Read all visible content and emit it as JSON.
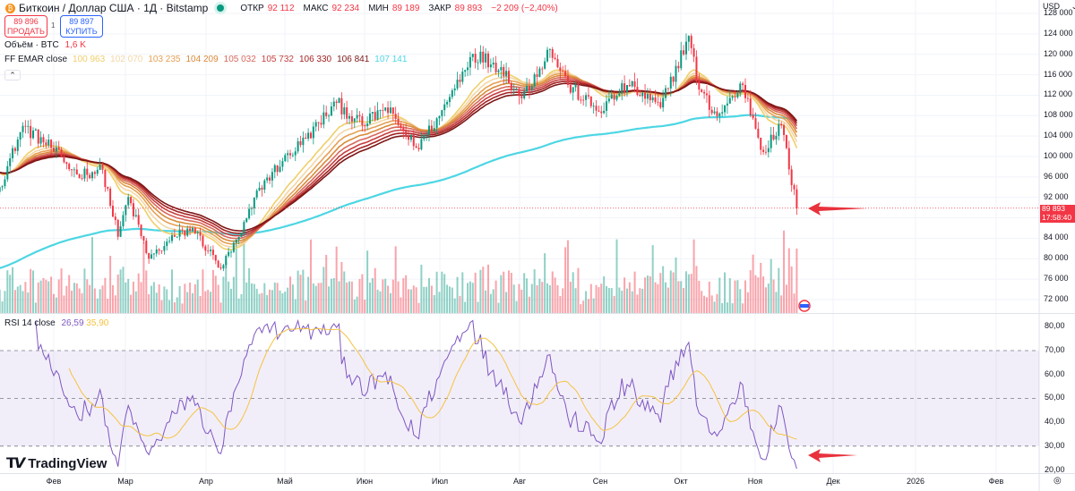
{
  "header": {
    "symbol": "Биткоин / Доллар США · 1Д · Bitstamp",
    "open_label": "ОТКР",
    "open": "92 112",
    "high_label": "МАКС",
    "high": "92 234",
    "low_label": "МИН",
    "low": "89 189",
    "close_label": "ЗАКР",
    "close": "89 893",
    "change": "−2 209 (−2,40%)"
  },
  "trade": {
    "sell_price": "89 896",
    "sell_label": "ПРОДАТЬ",
    "spread": "1",
    "buy_price": "89 897",
    "buy_label": "КУПИТЬ"
  },
  "volume_legend": {
    "label": "Объём · BTC",
    "value": "1,6 K"
  },
  "ema_legend": {
    "label": "FF EMAR close",
    "values": [
      {
        "v": "100 963",
        "color": "#f0cf6a"
      },
      {
        "v": "102 070",
        "color": "#f3d7a6"
      },
      {
        "v": "103 235",
        "color": "#e6a055"
      },
      {
        "v": "104 209",
        "color": "#d98a3a"
      },
      {
        "v": "105 032",
        "color": "#d8695c"
      },
      {
        "v": "105 732",
        "color": "#c73f3f"
      },
      {
        "v": "106 330",
        "color": "#a32222"
      },
      {
        "v": "106 841",
        "color": "#7d1616"
      },
      {
        "v": "107 141",
        "color": "#4dd6e3"
      }
    ]
  },
  "rsi_legend": {
    "label": "RSI 14 close",
    "rsi": "26,59",
    "ma": "35,90",
    "rsi_color": "#7e57c2",
    "ma_color": "#f5c342"
  },
  "price_axis": {
    "currency": "USD",
    "ticks": [
      "128 000",
      "124 000",
      "120 000",
      "116 000",
      "112 000",
      "108 000",
      "104 000",
      "100 000",
      "96 000",
      "92 000",
      "84 000",
      "80 000",
      "76 000",
      "72 000"
    ],
    "last_price": "89 893",
    "countdown": "17:58:40"
  },
  "rsi_axis": {
    "ticks": [
      "80,00",
      "70,00",
      "60,00",
      "50,00",
      "40,00",
      "30,00",
      "20,00"
    ]
  },
  "time_axis": {
    "ticks": [
      "Фев",
      "Мар",
      "Апр",
      "Май",
      "Июн",
      "Июл",
      "Авг",
      "Сен",
      "Окт",
      "Ноя",
      "Дек",
      "2026",
      "Фев"
    ]
  },
  "brand": "TradingView",
  "colors": {
    "up": "#089981",
    "down": "#f23645",
    "arrow": "#e8323c"
  },
  "chart_data": {
    "type": "candlestick",
    "title": "Биткоин / Доллар США · 1Д · Bitstamp",
    "ylim": [
      70000,
      130000
    ],
    "rsi_levels": [
      70,
      50,
      30
    ],
    "close_anchors": [
      [
        "2025-01-11",
        94000
      ],
      [
        "2025-01-20",
        106000
      ],
      [
        "2025-01-31",
        101700
      ],
      [
        "2025-02-10",
        96500
      ],
      [
        "2025-02-20",
        97400
      ],
      [
        "2025-02-26",
        84300
      ],
      [
        "2025-03-02",
        92100
      ],
      [
        "2025-03-10",
        80000
      ],
      [
        "2025-03-20",
        84300
      ],
      [
        "2025-03-27",
        86000
      ],
      [
        "2025-04-07",
        78100
      ],
      [
        "2025-04-15",
        85100
      ],
      [
        "2025-04-22",
        93900
      ],
      [
        "2025-05-01",
        99100
      ],
      [
        "2025-05-10",
        103500
      ],
      [
        "2025-05-22",
        110500
      ],
      [
        "2025-06-01",
        106100
      ],
      [
        "2025-06-10",
        109600
      ],
      [
        "2025-06-22",
        101700
      ],
      [
        "2025-07-01",
        107900
      ],
      [
        "2025-07-10",
        116600
      ],
      [
        "2025-07-14",
        120100
      ],
      [
        "2025-07-25",
        117500
      ],
      [
        "2025-08-02",
        111400
      ],
      [
        "2025-08-13",
        121000
      ],
      [
        "2025-08-20",
        114000
      ],
      [
        "2025-09-01",
        108800
      ],
      [
        "2025-09-12",
        114000
      ],
      [
        "2025-09-25",
        109600
      ],
      [
        "2025-10-06",
        123600
      ],
      [
        "2025-10-10",
        113100
      ],
      [
        "2025-10-17",
        107900
      ],
      [
        "2025-10-27",
        114000
      ],
      [
        "2025-11-04",
        100900
      ],
      [
        "2025-11-11",
        106100
      ],
      [
        "2025-11-17",
        89893
      ]
    ]
  }
}
